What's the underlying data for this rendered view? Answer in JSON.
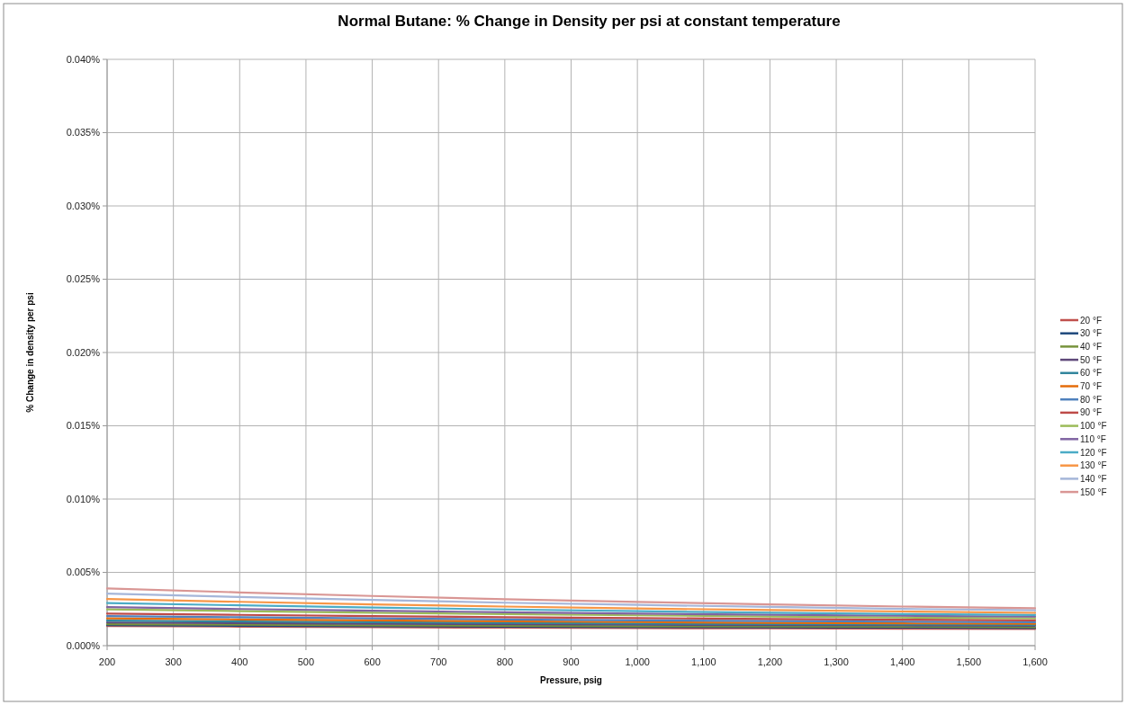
{
  "chart_data": {
    "type": "line",
    "title": "Normal Butane:  % Change in Density per psi at constant temperature",
    "xlabel": "Pressure, psig",
    "ylabel": "% Change in density per psi",
    "x": [
      200,
      400,
      600,
      800,
      1000,
      1200,
      1400,
      1600
    ],
    "xlim": [
      200,
      1600
    ],
    "xticks": [
      200,
      300,
      400,
      500,
      600,
      700,
      800,
      900,
      {
        "value": 1000,
        "label": "1,000"
      },
      {
        "value": 1100,
        "label": "1,100"
      },
      {
        "value": 1200,
        "label": "1,200"
      },
      {
        "value": 1300,
        "label": "1,300"
      },
      {
        "value": 1400,
        "label": "1,400"
      },
      {
        "value": 1500,
        "label": "1,500"
      },
      {
        "value": 1600,
        "label": "1,600"
      }
    ],
    "ylim": [
      0,
      0.04
    ],
    "yticks": [
      {
        "value": 0,
        "label": "0.000%"
      },
      {
        "value": 0.005,
        "label": "0.005%"
      },
      {
        "value": 0.01,
        "label": "0.010%"
      },
      {
        "value": 0.015,
        "label": "0.015%"
      },
      {
        "value": 0.02,
        "label": "0.020%"
      },
      {
        "value": 0.025,
        "label": "0.025%"
      },
      {
        "value": 0.03,
        "label": "0.030%"
      },
      {
        "value": 0.035,
        "label": "0.035%"
      },
      {
        "value": 0.04,
        "label": "0.040%"
      }
    ],
    "grid": true,
    "legend": "right",
    "marker": "none",
    "line_style": "solid",
    "series": [
      {
        "name": "20 °F",
        "color": "#c0504d",
        "values": [
          0.00134,
          0.0013,
          0.00126,
          0.00123,
          0.0012,
          0.00118,
          0.00116,
          0.00114
        ]
      },
      {
        "name": "30 °F",
        "color": "#1f497d",
        "values": [
          0.0014,
          0.00136,
          0.00133,
          0.0013,
          0.00127,
          0.00125,
          0.00123,
          0.00121
        ]
      },
      {
        "name": "40 °F",
        "color": "#77933c",
        "values": [
          0.00147,
          0.00143,
          0.00139,
          0.00136,
          0.00133,
          0.00131,
          0.00129,
          0.00127
        ]
      },
      {
        "name": "50 °F",
        "color": "#5f497a",
        "values": [
          0.00158,
          0.00154,
          0.0015,
          0.00146,
          0.00143,
          0.0014,
          0.00138,
          0.00136
        ]
      },
      {
        "name": "60 °F",
        "color": "#31859c",
        "values": [
          0.00171,
          0.00165,
          0.0016,
          0.00155,
          0.00151,
          0.00148,
          0.00145,
          0.00142
        ]
      },
      {
        "name": "70 °F",
        "color": "#e46c0a",
        "values": [
          0.00186,
          0.00179,
          0.00172,
          0.00166,
          0.00161,
          0.00156,
          0.00152,
          0.00149
        ]
      },
      {
        "name": "80 °F",
        "color": "#4f81bd",
        "values": [
          0.00202,
          0.00194,
          0.00186,
          0.00179,
          0.00173,
          0.00168,
          0.00164,
          0.0016
        ]
      },
      {
        "name": "90 °F",
        "color": "#be4b48",
        "values": [
          0.00219,
          0.0021,
          0.00202,
          0.00194,
          0.00188,
          0.00182,
          0.00177,
          0.00173
        ]
      },
      {
        "name": "100 °F",
        "color": "#9bbb59",
        "values": [
          0.00248,
          0.00236,
          0.00225,
          0.00215,
          0.00207,
          0.00199,
          0.00192,
          0.00187
        ]
      },
      {
        "name": "110 °F",
        "color": "#8064a2",
        "values": [
          0.00263,
          0.0025,
          0.00238,
          0.00228,
          0.00219,
          0.00211,
          0.00204,
          0.00198
        ]
      },
      {
        "name": "120 °F",
        "color": "#4bacc6",
        "values": [
          0.00291,
          0.00275,
          0.0026,
          0.00247,
          0.00235,
          0.00225,
          0.00216,
          0.00209
        ]
      },
      {
        "name": "130 °F",
        "color": "#f79646",
        "values": [
          0.00318,
          0.00299,
          0.00282,
          0.00267,
          0.00254,
          0.00243,
          0.00233,
          0.00224
        ]
      },
      {
        "name": "140 °F",
        "color": "#a5b6d9",
        "values": [
          0.00355,
          0.00332,
          0.00312,
          0.00293,
          0.00278,
          0.00264,
          0.00251,
          0.00241
        ]
      },
      {
        "name": "150 °F",
        "color": "#d99694",
        "values": [
          0.0039,
          0.00363,
          0.00339,
          0.00317,
          0.00298,
          0.00282,
          0.00267,
          0.00255
        ]
      }
    ]
  }
}
